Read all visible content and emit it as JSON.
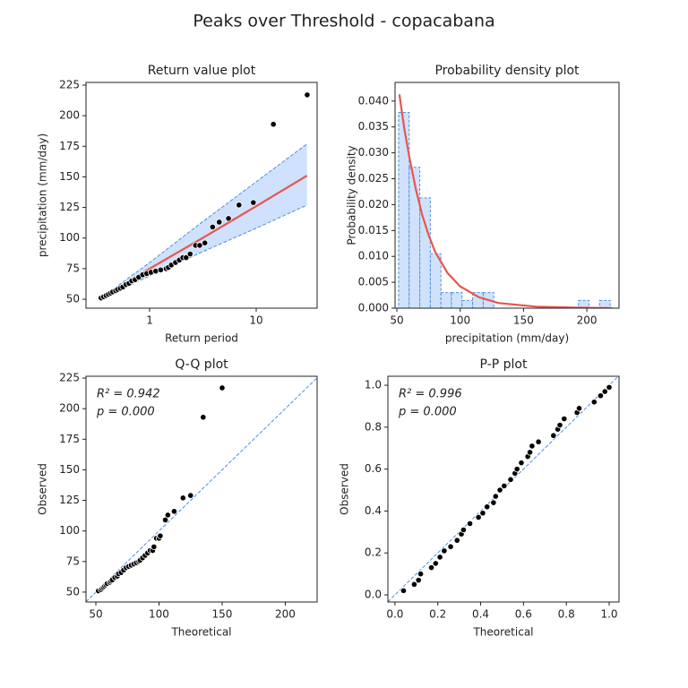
{
  "title": "Peaks over Threshold - copacabana",
  "chart_data": [
    {
      "type": "line",
      "title": "Return value plot",
      "xlabel": "Return period",
      "ylabel": "precipitation (mm/day)",
      "xscale": "log",
      "xlim": [
        0.253,
        37.3
      ],
      "ylim": [
        42.7,
        227.2
      ],
      "xticks": [
        1,
        10
      ],
      "yticks": [
        50,
        75,
        100,
        125,
        150,
        175,
        200,
        225
      ],
      "series": [
        {
          "style": "band",
          "color": "#cfe1fc",
          "edge_color": "#4a90e2",
          "x": [
            0.35,
            1,
            3,
            10,
            30
          ],
          "upper": [
            51,
            80,
            112,
            146,
            177
          ],
          "lower": [
            51,
            69,
            88,
            108,
            127
          ]
        },
        {
          "style": "line",
          "color": "#e8554e",
          "x": [
            0.35,
            1,
            3,
            10,
            30
          ],
          "values": [
            51,
            75,
            99,
            126,
            151
          ]
        },
        {
          "style": "scatter",
          "color": "#000000",
          "x": [
            0.35,
            0.37,
            0.39,
            0.41,
            0.43,
            0.45,
            0.48,
            0.5,
            0.53,
            0.56,
            0.6,
            0.64,
            0.68,
            0.73,
            0.79,
            0.86,
            0.94,
            1.03,
            1.14,
            1.27,
            1.43,
            1.5,
            1.6,
            1.75,
            1.9,
            2.05,
            2.2,
            2.4,
            2.7,
            2.95,
            3.3,
            3.9,
            4.5,
            5.5,
            6.9,
            9.4,
            14.5,
            30.1
          ],
          "values": [
            51,
            52,
            53,
            54,
            55,
            56,
            57,
            58,
            59,
            60,
            62,
            63,
            65,
            66,
            68,
            70,
            71,
            72,
            73,
            74,
            75,
            76,
            78,
            80,
            82,
            84,
            84,
            87,
            94,
            94,
            96,
            109,
            113,
            116,
            127,
            129,
            193,
            217
          ]
        }
      ]
    },
    {
      "type": "histogram",
      "title": "Probability density plot",
      "xlabel": "precipitation (mm/day)",
      "ylabel": "Probability density",
      "xlim": [
        48.6,
        225.4
      ],
      "ylim": [
        0,
        0.0436
      ],
      "xticks": [
        50,
        100,
        150,
        200
      ],
      "yticks": [
        {
          "value": 0,
          "label": "0.000"
        },
        {
          "value": 0.005,
          "label": "0.005"
        },
        {
          "value": 0.01,
          "label": "0.010"
        },
        {
          "value": 0.015,
          "label": "0.015"
        },
        {
          "value": 0.02,
          "label": "0.020"
        },
        {
          "value": 0.025,
          "label": "0.025"
        },
        {
          "value": 0.03,
          "label": "0.030"
        },
        {
          "value": 0.035,
          "label": "0.035"
        },
        {
          "value": 0.04,
          "label": "0.040"
        }
      ],
      "color": "#d0e2fb",
      "edge_color": "#4a90e2",
      "bins": [
        51.4,
        59.75,
        68.1,
        76.45,
        84.8,
        93.15,
        101.5,
        109.85,
        118.2,
        126.55,
        134.9,
        143.25,
        151.6,
        159.95,
        168.3,
        176.65,
        185.0,
        193.35,
        201.7,
        210.05,
        218.4
      ],
      "values": [
        0.0378,
        0.0272,
        0.0213,
        0.0105,
        0.003,
        0.003,
        0.0015,
        0.003,
        0.003,
        0,
        0,
        0,
        0,
        0,
        0,
        0,
        0,
        0.0015,
        0,
        0.0015
      ],
      "series": [
        {
          "style": "line",
          "color": "#e8554e",
          "x": [
            52,
            56,
            60,
            65,
            70,
            75,
            80,
            90,
            100,
            115,
            130,
            160,
            190,
            220
          ],
          "values": [
            0.0413,
            0.0345,
            0.029,
            0.023,
            0.018,
            0.0142,
            0.011,
            0.0068,
            0.0042,
            0.0021,
            0.001,
            0.0003,
            0.0001,
            0
          ]
        }
      ]
    },
    {
      "type": "scatter",
      "title": "Q-Q plot",
      "xlabel": "Theoretical",
      "ylabel": "Observed",
      "diagonal": true,
      "color": "#000000",
      "xlim": [
        42.2,
        225.2
      ],
      "ylim": [
        41.9,
        226.5
      ],
      "xticks": [
        50,
        100,
        150,
        200
      ],
      "yticks": [
        50,
        75,
        100,
        125,
        150,
        175,
        200,
        225
      ],
      "annotations": [
        "R² = 0.942",
        "p = 0.000"
      ],
      "x": [
        52,
        54,
        55,
        56,
        57,
        58,
        59,
        61,
        62,
        63,
        65,
        67,
        68,
        70,
        72,
        74,
        76,
        78,
        80,
        82,
        84,
        85,
        87,
        89,
        91,
        93,
        95,
        96,
        98,
        100,
        101,
        105,
        107,
        112,
        119,
        125,
        135,
        150
      ],
      "values": [
        51,
        52,
        53,
        54,
        55,
        56,
        57,
        58,
        59,
        60,
        62,
        63,
        65,
        66,
        68,
        70,
        71,
        72,
        73,
        74,
        75,
        76,
        78,
        80,
        82,
        84,
        84,
        87,
        94,
        94,
        96,
        109,
        113,
        116,
        127,
        129,
        193,
        217
      ]
    },
    {
      "type": "scatter",
      "title": "P-P plot",
      "xlabel": "Theoretical",
      "ylabel": "Observed",
      "diagonal": true,
      "color": "#000000",
      "xlim": [
        -0.033,
        1.046
      ],
      "ylim": [
        -0.034,
        1.043
      ],
      "xticks": [
        {
          "value": 0,
          "label": "0.0"
        },
        {
          "value": 0.2,
          "label": "0.2"
        },
        {
          "value": 0.4,
          "label": "0.4"
        },
        {
          "value": 0.6,
          "label": "0.6"
        },
        {
          "value": 0.8,
          "label": "0.8"
        },
        {
          "value": 1,
          "label": "1.0"
        }
      ],
      "yticks": [
        {
          "value": 0,
          "label": "0.0"
        },
        {
          "value": 0.2,
          "label": "0.2"
        },
        {
          "value": 0.4,
          "label": "0.4"
        },
        {
          "value": 0.6,
          "label": "0.6"
        },
        {
          "value": 0.8,
          "label": "0.8"
        },
        {
          "value": 1,
          "label": "1.0"
        }
      ],
      "annotations": [
        "R² = 0.996",
        "p = 0.000"
      ],
      "x": [
        0.04,
        0.09,
        0.11,
        0.12,
        0.17,
        0.19,
        0.21,
        0.23,
        0.26,
        0.29,
        0.31,
        0.32,
        0.35,
        0.39,
        0.41,
        0.43,
        0.46,
        0.47,
        0.49,
        0.51,
        0.54,
        0.56,
        0.57,
        0.59,
        0.62,
        0.63,
        0.64,
        0.67,
        0.74,
        0.76,
        0.77,
        0.79,
        0.85,
        0.86,
        0.93,
        0.96,
        0.98,
        1.0
      ],
      "values": [
        0.02,
        0.05,
        0.07,
        0.1,
        0.13,
        0.15,
        0.18,
        0.21,
        0.23,
        0.26,
        0.29,
        0.31,
        0.34,
        0.37,
        0.39,
        0.42,
        0.44,
        0.47,
        0.5,
        0.52,
        0.55,
        0.58,
        0.6,
        0.63,
        0.66,
        0.68,
        0.71,
        0.73,
        0.76,
        0.79,
        0.81,
        0.84,
        0.87,
        0.89,
        0.92,
        0.95,
        0.97,
        0.99
      ]
    }
  ]
}
